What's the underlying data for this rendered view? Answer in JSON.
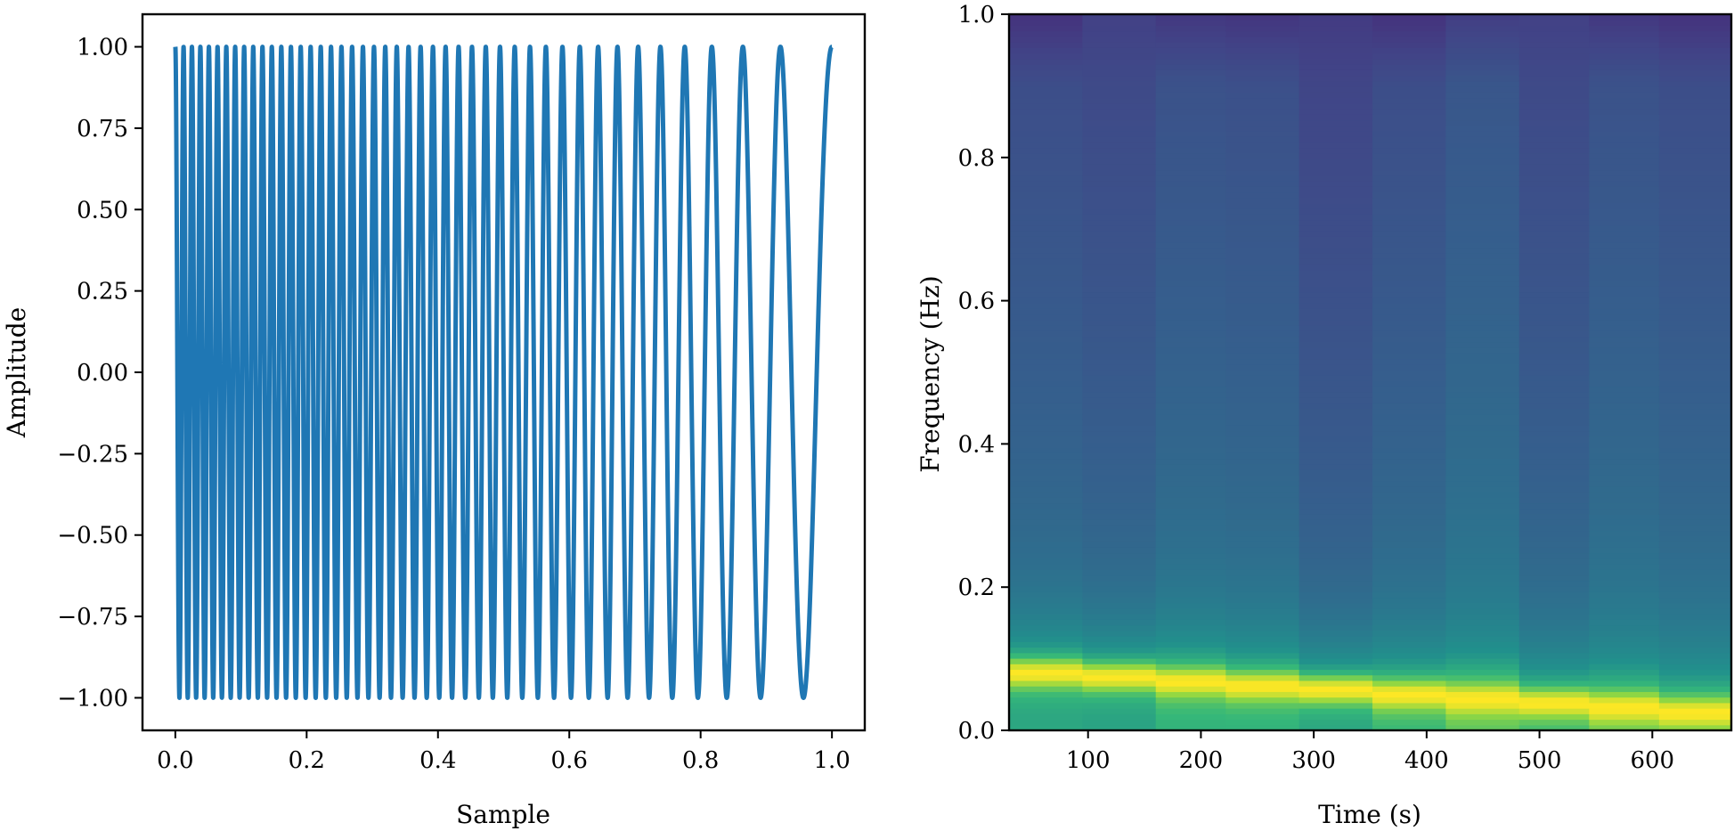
{
  "chart_data": [
    {
      "type": "line",
      "title": "",
      "xlabel": "Sample",
      "ylabel": "Amplitude",
      "xlim": [
        -0.05,
        1.05
      ],
      "ylim": [
        -1.1,
        1.1
      ],
      "xticks": [
        0.0,
        0.2,
        0.4,
        0.6,
        0.8,
        1.0
      ],
      "xtick_labels": [
        "0.0",
        "0.2",
        "0.4",
        "0.6",
        "0.8",
        "1.0"
      ],
      "yticks": [
        1.0,
        0.75,
        0.5,
        0.25,
        0.0,
        -0.25,
        -0.5,
        -0.75,
        -1.0
      ],
      "ytick_labels": [
        "1.00",
        "0.75",
        "0.50",
        "0.25",
        "0.00",
        "−0.25",
        "−0.50",
        "−0.75",
        "−1.00"
      ],
      "series_color": "#1f77b4",
      "signal": {
        "kind": "chirp",
        "description_of_values": "cosine sweep",
        "start_frequency": 80,
        "end_frequency": 10,
        "duration": 1.0
      },
      "grid": false
    },
    {
      "type": "heatmap",
      "title": "",
      "xlabel": "Time (s)",
      "ylabel": "Frequency (Hz)",
      "xlim": [
        30,
        670
      ],
      "ylim": [
        0.0,
        1.0
      ],
      "xticks": [
        100,
        200,
        300,
        400,
        500,
        600
      ],
      "xtick_labels": [
        "100",
        "200",
        "300",
        "400",
        "500",
        "600"
      ],
      "yticks": [
        0.0,
        0.2,
        0.4,
        0.6,
        0.8,
        1.0
      ],
      "ytick_labels": [
        "0.0",
        "0.2",
        "0.4",
        "0.6",
        "0.8",
        "1.0"
      ],
      "colormap": "viridis",
      "time_bin_edges": [
        30,
        95,
        160,
        222,
        287,
        352,
        417,
        482,
        544,
        606,
        670
      ],
      "ridge_frequency": [
        0.08,
        0.075,
        0.068,
        0.062,
        0.057,
        0.05,
        0.044,
        0.038,
        0.032,
        0.025
      ],
      "background_level": [
        0.34,
        0.32,
        0.36,
        0.35,
        0.3,
        0.34,
        0.38,
        0.32,
        0.36,
        0.34
      ],
      "grid": false
    }
  ]
}
